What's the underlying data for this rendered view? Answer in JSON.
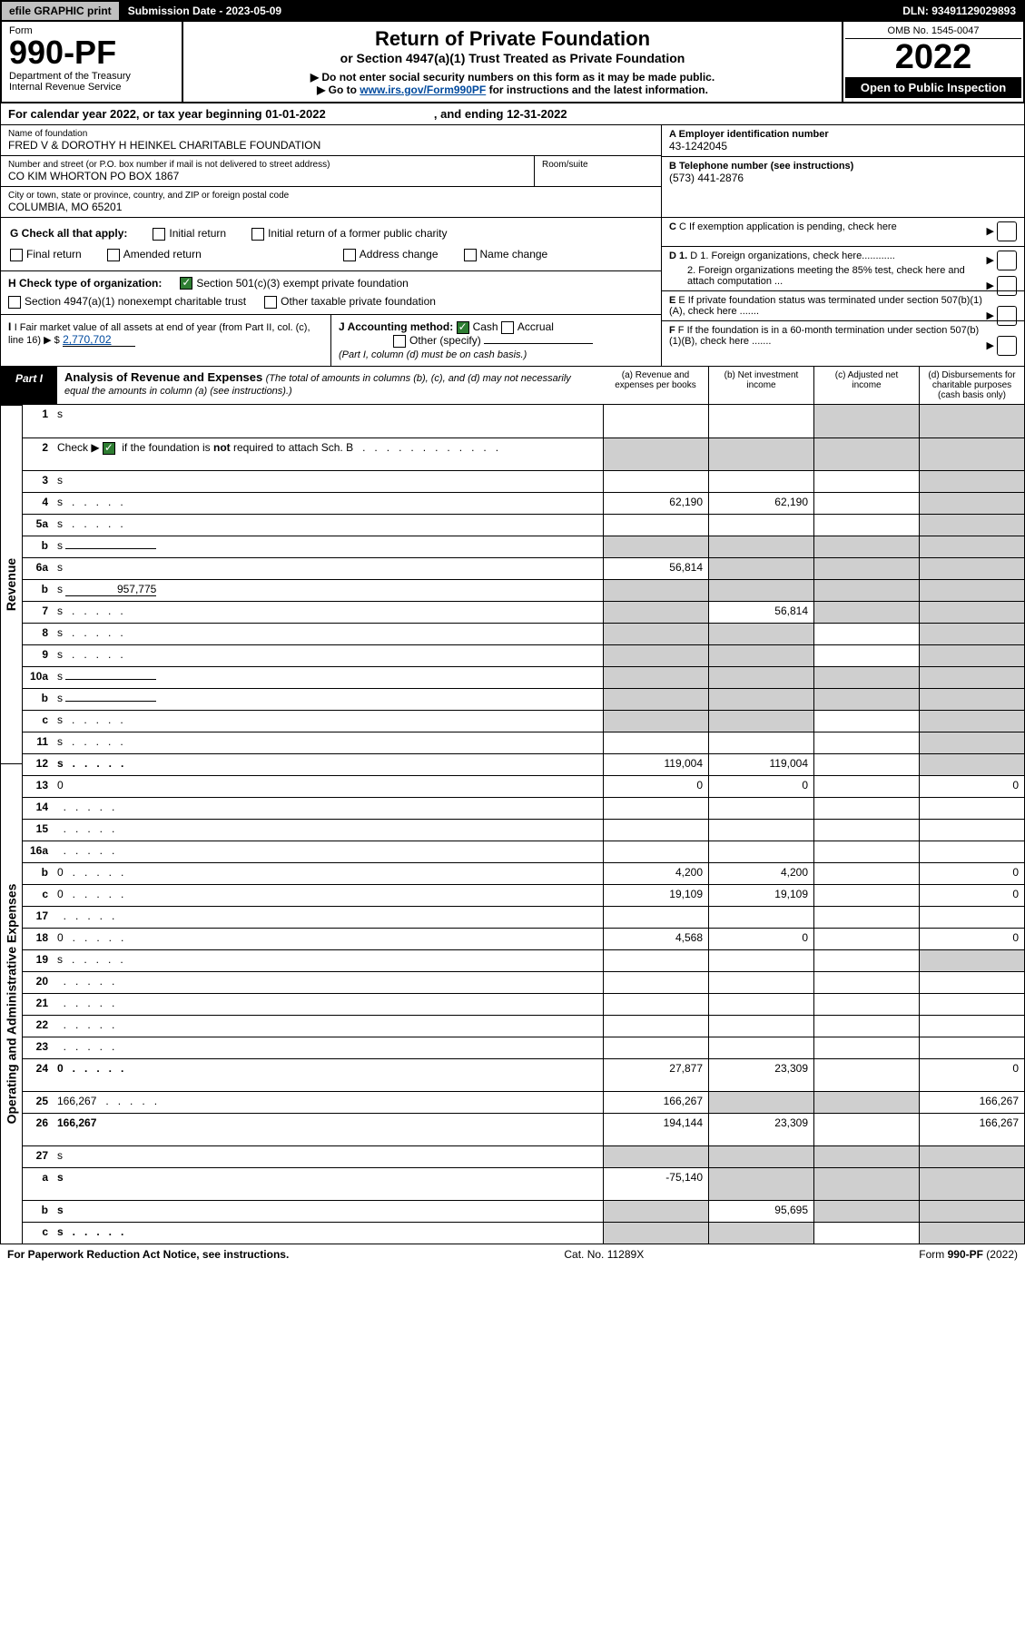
{
  "topbar": {
    "efile": "efile GRAPHIC print",
    "submission": "Submission Date - 2023-05-09",
    "dln": "DLN: 93491129029893"
  },
  "header": {
    "form_word": "Form",
    "form_num": "990-PF",
    "dept": "Department of the Treasury\nInternal Revenue Service",
    "title": "Return of Private Foundation",
    "subtitle": "or Section 4947(a)(1) Trust Treated as Private Foundation",
    "note1": "▶ Do not enter social security numbers on this form as it may be made public.",
    "note2_pre": "▶ Go to ",
    "note2_link": "www.irs.gov/Form990PF",
    "note2_post": " for instructions and the latest information.",
    "omb": "OMB No. 1545-0047",
    "year": "2022",
    "open": "Open to Public Inspection"
  },
  "cal": "For calendar year 2022, or tax year beginning 01-01-2022                                 , and ending 12-31-2022",
  "id": {
    "name_lbl": "Name of foundation",
    "name": "FRED V & DOROTHY H HEINKEL CHARITABLE FOUNDATION",
    "addr_lbl": "Number and street (or P.O. box number if mail is not delivered to street address)",
    "addr": "CO KIM WHORTON PO BOX 1867",
    "room_lbl": "Room/suite",
    "city_lbl": "City or town, state or province, country, and ZIP or foreign postal code",
    "city": "COLUMBIA, MO  65201",
    "a_lbl": "A Employer identification number",
    "a_val": "43-1242045",
    "b_lbl": "B Telephone number (see instructions)",
    "b_val": "(573) 441-2876",
    "c_lbl": "C If exemption application is pending, check here",
    "d1": "D 1. Foreign organizations, check here............",
    "d2": "2. Foreign organizations meeting the 85% test, check here and attach computation ...",
    "e": "E  If private foundation status was terminated under section 507(b)(1)(A), check here .......",
    "f": "F  If the foundation is in a 60-month termination under section 507(b)(1)(B), check here .......",
    "g": "G Check all that apply:",
    "g_opts": [
      "Initial return",
      "Initial return of a former public charity",
      "Final return",
      "Amended return",
      "Address change",
      "Name change"
    ],
    "h": "H Check type of organization:",
    "h1": "Section 501(c)(3) exempt private foundation",
    "h2": "Section 4947(a)(1) nonexempt charitable trust",
    "h3": "Other taxable private foundation",
    "i_lbl": "I Fair market value of all assets at end of year (from Part II, col. (c), line 16) ▶ $",
    "i_val": "2,770,702",
    "j_lbl": "J Accounting method:",
    "j1": "Cash",
    "j2": "Accrual",
    "j3": "Other (specify)",
    "j_note": "(Part I, column (d) must be on cash basis.)"
  },
  "part1": {
    "tab": "Part I",
    "title": "Analysis of Revenue and Expenses",
    "sub": "(The total of amounts in columns (b), (c), and (d) may not necessarily equal the amounts in column (a) (see instructions).)",
    "cols": {
      "a": "(a)   Revenue and expenses per books",
      "b": "(b)   Net investment income",
      "c": "(c)   Adjusted net income",
      "d": "(d)   Disbursements for charitable purposes (cash basis only)"
    }
  },
  "sides": {
    "rev": "Revenue",
    "exp": "Operating and Administrative Expenses"
  },
  "rows": [
    {
      "n": "1",
      "d": "s",
      "a": "",
      "b": "",
      "c": "s",
      "tall": true
    },
    {
      "n": "2",
      "d": "s",
      "a": "s",
      "b": "s",
      "c": "s",
      "tall": true,
      "dotted": true,
      "nb": true
    },
    {
      "n": "3",
      "d": "s",
      "a": "",
      "b": "",
      "c": ""
    },
    {
      "n": "4",
      "d": "s",
      "a": "62,190",
      "b": "62,190",
      "c": "",
      "dotted": true
    },
    {
      "n": "5a",
      "d": "s",
      "a": "",
      "b": "",
      "c": "",
      "dotted": true
    },
    {
      "n": "b",
      "d": "s",
      "a": "s",
      "b": "s",
      "c": "s",
      "inline": true
    },
    {
      "n": "6a",
      "d": "s",
      "a": "56,814",
      "b": "s",
      "c": "s"
    },
    {
      "n": "b",
      "d": "s",
      "a": "s",
      "b": "s",
      "c": "s",
      "inline": true,
      "inlineval": "957,775"
    },
    {
      "n": "7",
      "d": "s",
      "a": "s",
      "b": "56,814",
      "c": "s",
      "dotted": true
    },
    {
      "n": "8",
      "d": "s",
      "a": "s",
      "b": "s",
      "c": "",
      "dotted": true
    },
    {
      "n": "9",
      "d": "s",
      "a": "s",
      "b": "s",
      "c": "",
      "dotted": true
    },
    {
      "n": "10a",
      "d": "s",
      "a": "s",
      "b": "s",
      "c": "s",
      "inline": true
    },
    {
      "n": "b",
      "d": "s",
      "a": "s",
      "b": "s",
      "c": "s",
      "inline": true,
      "dotted": true
    },
    {
      "n": "c",
      "d": "s",
      "a": "s",
      "b": "s",
      "c": "",
      "dotted": true
    },
    {
      "n": "11",
      "d": "s",
      "a": "",
      "b": "",
      "c": "",
      "dotted": true
    },
    {
      "n": "12",
      "d": "s",
      "a": "119,004",
      "b": "119,004",
      "c": "",
      "bold": true,
      "dotted": true
    }
  ],
  "rows2": [
    {
      "n": "13",
      "d": "0",
      "a": "0",
      "b": "0",
      "c": ""
    },
    {
      "n": "14",
      "d": "",
      "a": "",
      "b": "",
      "c": "",
      "dotted": true
    },
    {
      "n": "15",
      "d": "",
      "a": "",
      "b": "",
      "c": "",
      "dotted": true
    },
    {
      "n": "16a",
      "d": "",
      "a": "",
      "b": "",
      "c": "",
      "dotted": true
    },
    {
      "n": "b",
      "d": "0",
      "a": "4,200",
      "b": "4,200",
      "c": "",
      "dotted": true
    },
    {
      "n": "c",
      "d": "0",
      "a": "19,109",
      "b": "19,109",
      "c": "",
      "dotted": true
    },
    {
      "n": "17",
      "d": "",
      "a": "",
      "b": "",
      "c": "",
      "dotted": true
    },
    {
      "n": "18",
      "d": "0",
      "a": "4,568",
      "b": "0",
      "c": "",
      "dotted": true
    },
    {
      "n": "19",
      "d": "s",
      "a": "",
      "b": "",
      "c": "",
      "dotted": true
    },
    {
      "n": "20",
      "d": "",
      "a": "",
      "b": "",
      "c": "",
      "dotted": true
    },
    {
      "n": "21",
      "d": "",
      "a": "",
      "b": "",
      "c": "",
      "dotted": true
    },
    {
      "n": "22",
      "d": "",
      "a": "",
      "b": "",
      "c": "",
      "dotted": true
    },
    {
      "n": "23",
      "d": "",
      "a": "",
      "b": "",
      "c": "",
      "dotted": true
    },
    {
      "n": "24",
      "d": "0",
      "a": "27,877",
      "b": "23,309",
      "c": "",
      "bold": true,
      "tall": true,
      "dotted": true
    },
    {
      "n": "25",
      "d": "166,267",
      "a": "166,267",
      "b": "s",
      "c": "s",
      "dotted": true
    },
    {
      "n": "26",
      "d": "166,267",
      "a": "194,144",
      "b": "23,309",
      "c": "",
      "bold": true,
      "tall": true
    }
  ],
  "rows3": [
    {
      "n": "27",
      "d": "s",
      "a": "s",
      "b": "s",
      "c": "s"
    },
    {
      "n": "a",
      "d": "s",
      "a": "-75,140",
      "b": "s",
      "c": "s",
      "bold": true,
      "tall": true
    },
    {
      "n": "b",
      "d": "s",
      "a": "s",
      "b": "95,695",
      "c": "s",
      "bold": true
    },
    {
      "n": "c",
      "d": "s",
      "a": "s",
      "b": "s",
      "c": "",
      "bold": true,
      "dotted": true
    }
  ],
  "footer": {
    "l": "For Paperwork Reduction Act Notice, see instructions.",
    "m": "Cat. No. 11289X",
    "r": "Form 990-PF (2022)"
  },
  "colors": {
    "shade": "#cfcfcf",
    "link": "#004a9e",
    "check": "#2e7d32"
  }
}
